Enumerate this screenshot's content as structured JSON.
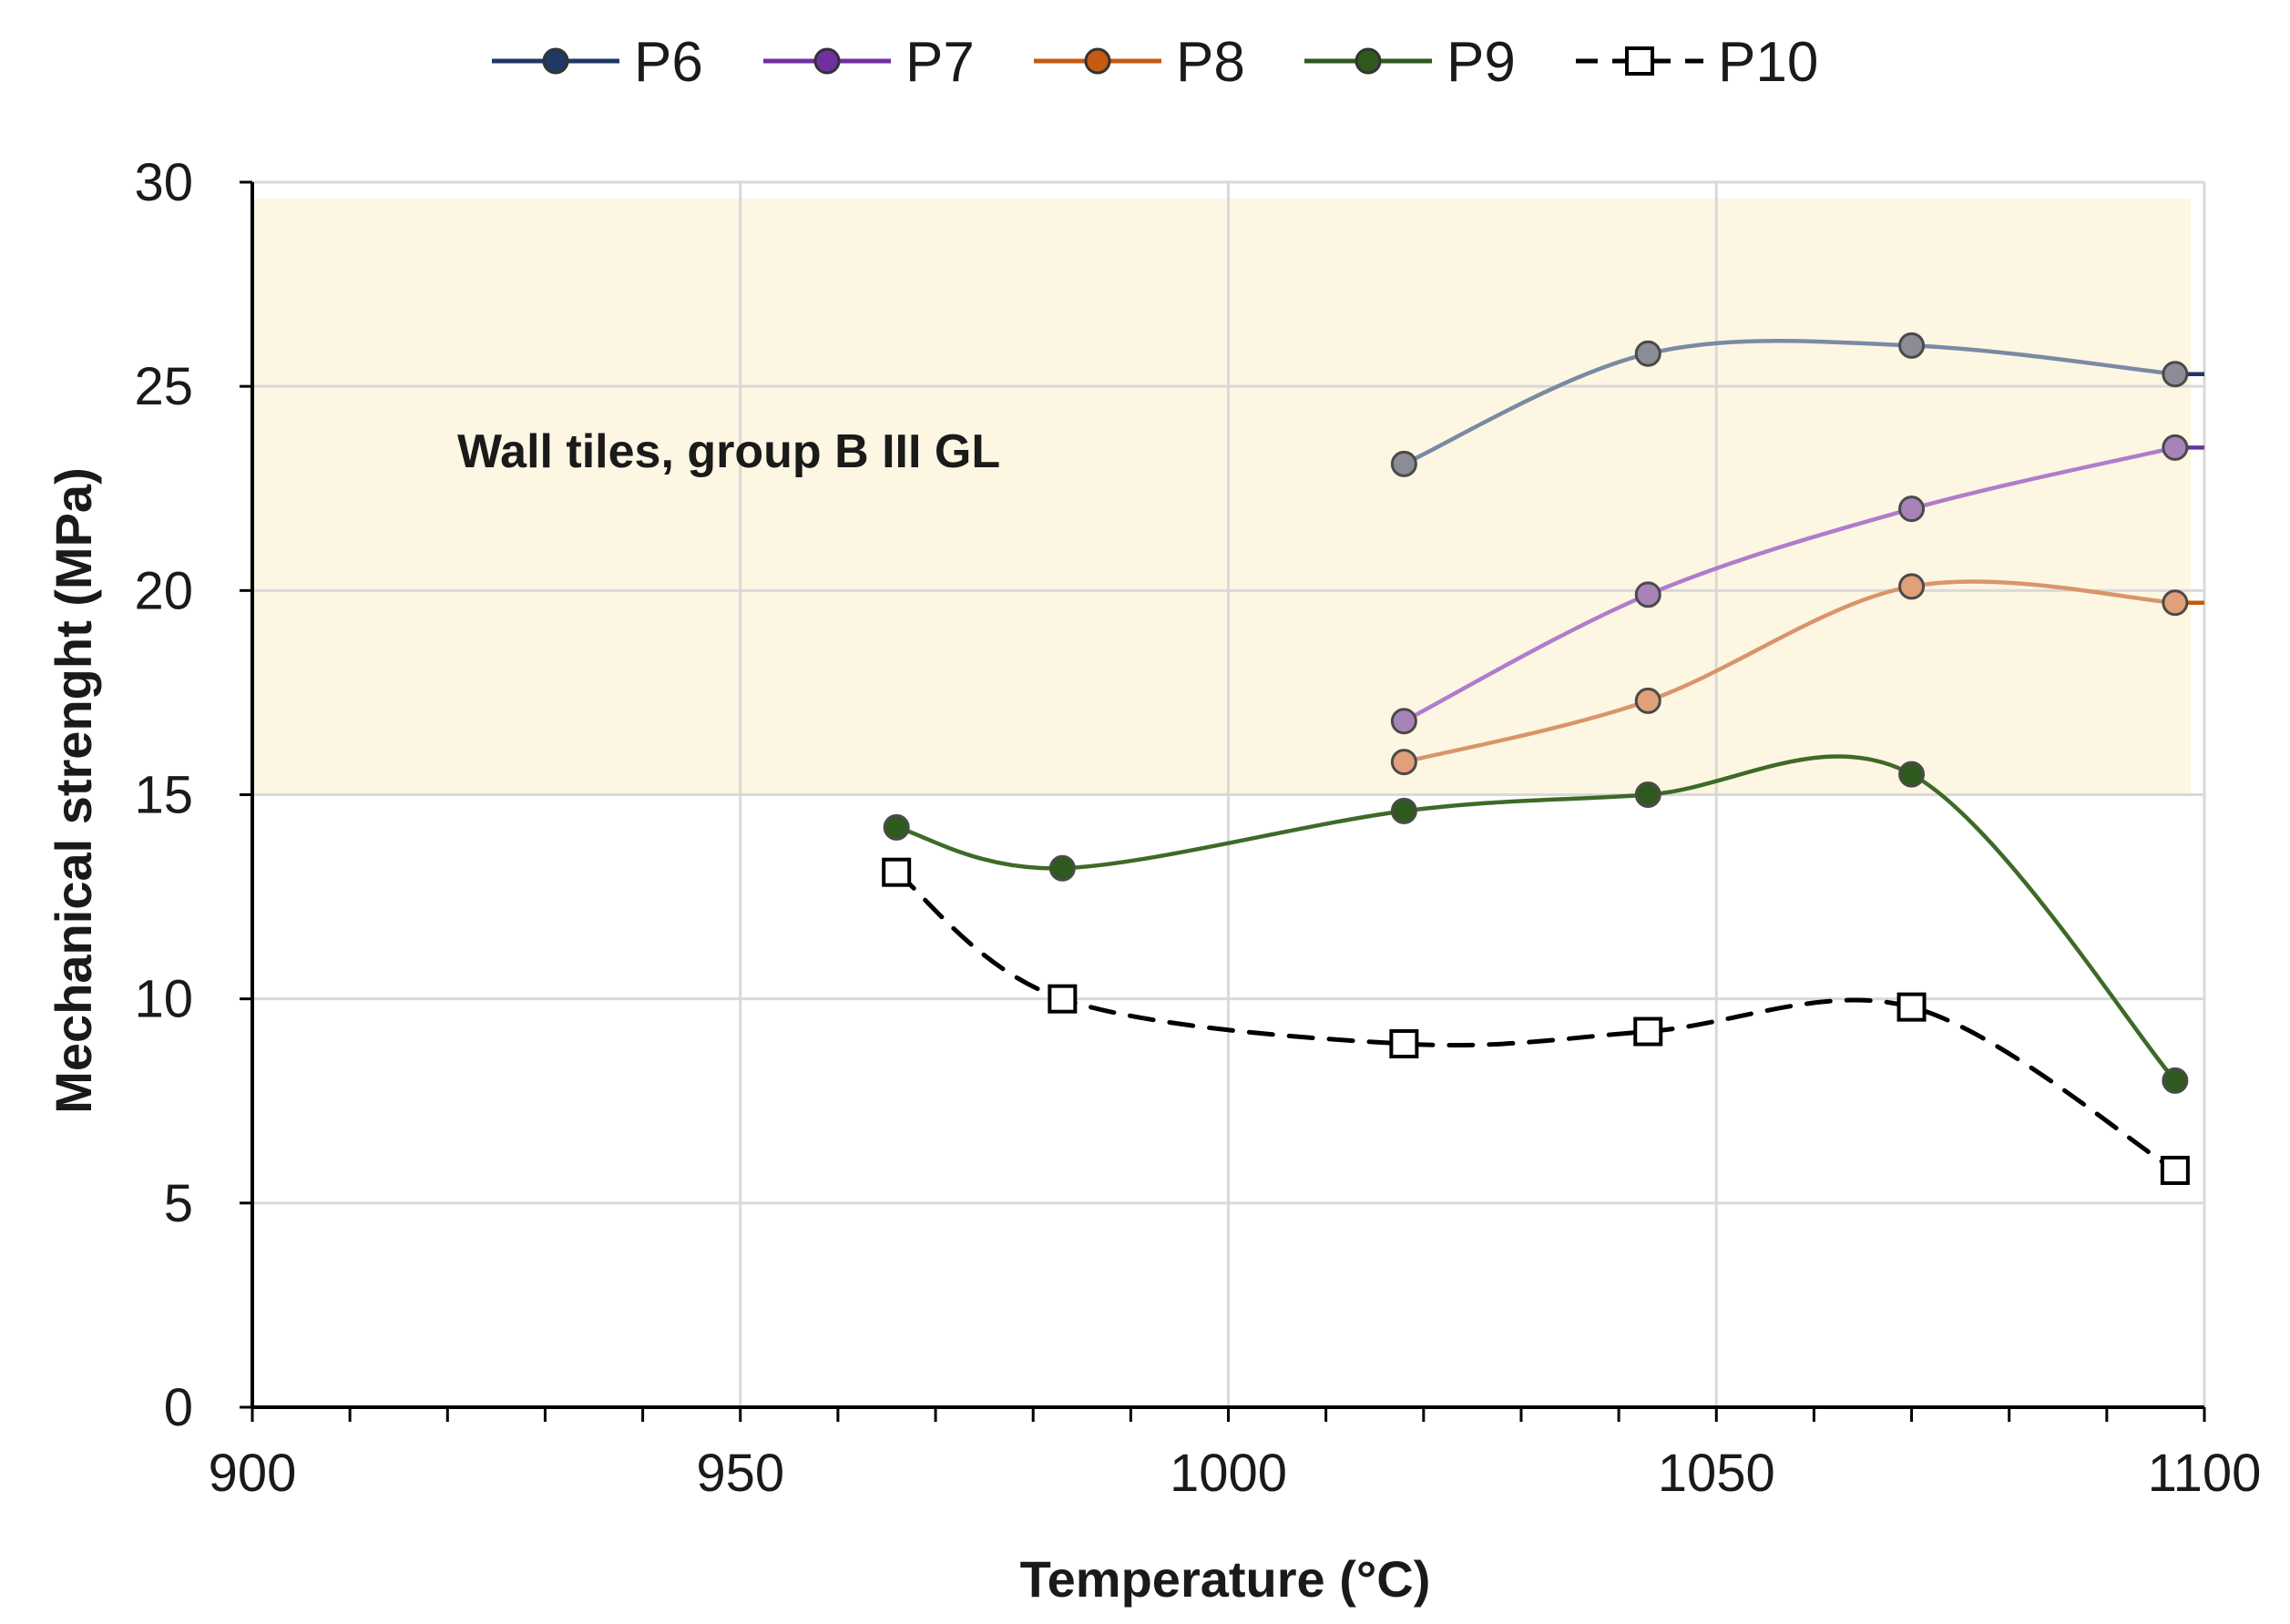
{
  "chart_data": {
    "type": "line",
    "title": "",
    "xlabel": "Temperature   (°C)",
    "ylabel": "Mechanical strenght   (MPa)",
    "xlim": [
      900,
      1100
    ],
    "ylim": [
      0,
      30
    ],
    "x_ticks": [
      900,
      950,
      1000,
      1050,
      1100
    ],
    "y_ticks": [
      0,
      5,
      10,
      15,
      20,
      25,
      30
    ],
    "x_minor_step": 10,
    "grid": true,
    "legend_position": "top",
    "shaded_region": {
      "label": "Wall tiles, group B III GL",
      "y_range": [
        15,
        29.6
      ],
      "color": "#fdf6e3"
    },
    "series": [
      {
        "name": "P6",
        "color": "#1f3864",
        "line_color": "#7a8aa3",
        "marker_fill": "#8c8c96",
        "marker": "circle",
        "dash": false,
        "x": [
          1018,
          1043,
          1070,
          1097
        ],
        "y": [
          23.1,
          25.8,
          26.0,
          25.3
        ]
      },
      {
        "name": "P7",
        "color": "#7030a0",
        "line_color": "#b07ccb",
        "marker_fill": "#a883b8",
        "marker": "circle",
        "dash": false,
        "x": [
          1018,
          1043,
          1070,
          1097
        ],
        "y": [
          16.8,
          19.9,
          22.0,
          23.5
        ]
      },
      {
        "name": "P8",
        "color": "#c55a11",
        "line_color": "#d9956a",
        "marker_fill": "#e1a07a",
        "marker": "circle",
        "dash": false,
        "x": [
          1018,
          1043,
          1070,
          1097
        ],
        "y": [
          15.8,
          17.3,
          20.1,
          19.7
        ]
      },
      {
        "name": "P9",
        "color": "#2e5a1e",
        "line_color": "#3d6b27",
        "marker_fill": "#2e5a1e",
        "marker": "circle",
        "dash": false,
        "x": [
          966,
          983,
          1018,
          1043,
          1070,
          1097
        ],
        "y": [
          14.2,
          13.2,
          14.6,
          15.0,
          15.5,
          8.0
        ]
      },
      {
        "name": "P10",
        "color": "#000000",
        "line_color": "#000000",
        "marker_fill": "#ffffff",
        "marker": "square",
        "dash": true,
        "x": [
          966,
          983,
          1018,
          1043,
          1070,
          1097
        ],
        "y": [
          13.1,
          10.0,
          8.9,
          9.2,
          9.8,
          5.8
        ]
      }
    ]
  }
}
